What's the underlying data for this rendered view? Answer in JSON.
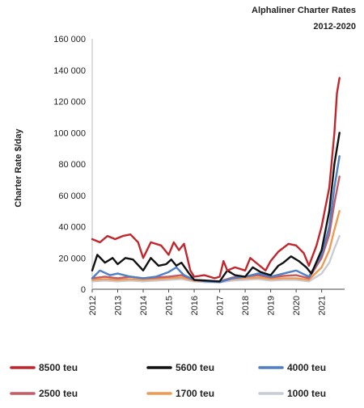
{
  "chart_data": {
    "type": "line",
    "title": "Alphaliner Charter Rates",
    "subtitle": "2012-2020",
    "ylabel": "Charter Rate $/day",
    "xlabel": "",
    "ylim": [
      0,
      160000
    ],
    "xlim": [
      2012,
      2021.9
    ],
    "y_ticks": [
      "0",
      "20 000",
      "40 000",
      "60 000",
      "80 000",
      "100 000",
      "120 000",
      "140 000",
      "160 000"
    ],
    "y_tick_values": [
      0,
      20000,
      40000,
      60000,
      80000,
      100000,
      120000,
      140000,
      160000
    ],
    "x_ticks": [
      "2012",
      "2013",
      "2014",
      "2015",
      "2016",
      "2017",
      "2018",
      "2019",
      "2020",
      "2021"
    ],
    "x_tick_values": [
      2012,
      2013,
      2014,
      2015,
      2016,
      2017,
      2018,
      2019,
      2020,
      2021
    ],
    "grid": false,
    "legend_position": "bottom",
    "series": [
      {
        "name": "8500 teu",
        "color": "#c0262c",
        "x": [
          2012,
          2012.3,
          2012.6,
          2012.9,
          2013.2,
          2013.5,
          2013.8,
          2014,
          2014.3,
          2014.7,
          2015,
          2015.2,
          2015.4,
          2015.6,
          2015.85,
          2016,
          2016.4,
          2016.8,
          2017,
          2017.15,
          2017.3,
          2017.6,
          2018,
          2018.2,
          2018.5,
          2018.8,
          2019,
          2019.3,
          2019.7,
          2020,
          2020.3,
          2020.5,
          2020.8,
          2021,
          2021.3,
          2021.5,
          2021.6,
          2021.7
        ],
        "y": [
          32000,
          30000,
          34000,
          32000,
          34000,
          35000,
          30000,
          20000,
          30000,
          28000,
          22000,
          30000,
          25000,
          29000,
          12000,
          8000,
          9000,
          7000,
          8000,
          18000,
          12000,
          14000,
          12000,
          20000,
          16000,
          12000,
          18000,
          24000,
          29000,
          28000,
          23000,
          15000,
          28000,
          40000,
          65000,
          100000,
          125000,
          135000
        ]
      },
      {
        "name": "5600 teu",
        "color": "#111111",
        "x": [
          2012,
          2012.2,
          2012.5,
          2012.8,
          2013,
          2013.3,
          2013.6,
          2014,
          2014.3,
          2014.6,
          2014.9,
          2015.1,
          2015.3,
          2015.5,
          2015.8,
          2016,
          2016.5,
          2017,
          2017.3,
          2017.6,
          2018,
          2018.3,
          2018.6,
          2019,
          2019.3,
          2019.5,
          2019.8,
          2020.1,
          2020.4,
          2020.6,
          2021,
          2021.3,
          2021.5,
          2021.7
        ],
        "y": [
          12000,
          22000,
          17000,
          20000,
          16000,
          20000,
          19000,
          12000,
          20000,
          15000,
          16000,
          19000,
          15000,
          17000,
          10000,
          6000,
          5500,
          5000,
          12000,
          9000,
          8000,
          14000,
          11000,
          9000,
          15000,
          17000,
          21000,
          18000,
          14000,
          10000,
          25000,
          50000,
          80000,
          100000
        ]
      },
      {
        "name": "4000 teu",
        "color": "#4f7fc4",
        "x": [
          2012,
          2012.3,
          2012.7,
          2013,
          2013.5,
          2014,
          2014.5,
          2015,
          2015.3,
          2015.6,
          2016,
          2016.5,
          2017,
          2017.5,
          2018,
          2018.5,
          2019,
          2019.5,
          2020,
          2020.5,
          2021,
          2021.3,
          2021.5,
          2021.7
        ],
        "y": [
          7000,
          12000,
          9000,
          10000,
          8000,
          7000,
          8000,
          11000,
          14000,
          9000,
          6000,
          5000,
          4500,
          7000,
          8000,
          10000,
          8000,
          10000,
          12000,
          8000,
          22000,
          40000,
          65000,
          85000
        ]
      },
      {
        "name": "2500 teu",
        "color": "#c45c64",
        "x": [
          2012,
          2012.5,
          2013,
          2013.5,
          2014,
          2014.5,
          2015,
          2015.5,
          2016,
          2016.5,
          2017,
          2017.5,
          2018,
          2018.5,
          2019,
          2019.5,
          2020,
          2020.5,
          2021,
          2021.3,
          2021.5,
          2021.7
        ],
        "y": [
          7000,
          8000,
          7000,
          8000,
          7000,
          7500,
          8000,
          9000,
          6000,
          5000,
          5000,
          7500,
          8000,
          9000,
          7500,
          8500,
          9000,
          7000,
          20000,
          35000,
          55000,
          72000
        ]
      },
      {
        "name": "1700 teu",
        "color": "#ed9a52",
        "x": [
          2012,
          2012.5,
          2013,
          2013.5,
          2014,
          2014.5,
          2015,
          2015.5,
          2016,
          2016.5,
          2017,
          2017.5,
          2018,
          2018.5,
          2019,
          2019.5,
          2020,
          2020.5,
          2021,
          2021.3,
          2021.5,
          2021.7
        ],
        "y": [
          6000,
          6500,
          6000,
          6500,
          6000,
          6500,
          7000,
          7500,
          5500,
          5000,
          5000,
          6500,
          7000,
          7500,
          6500,
          7000,
          7000,
          6000,
          14000,
          25000,
          38000,
          50000
        ]
      },
      {
        "name": "1000 teu",
        "color": "#c9cbd6",
        "x": [
          2012,
          2012.5,
          2013,
          2013.5,
          2014,
          2014.5,
          2015,
          2015.5,
          2016,
          2016.5,
          2017,
          2017.5,
          2018,
          2018.5,
          2019,
          2019.5,
          2020,
          2020.5,
          2021,
          2021.3,
          2021.5,
          2021.7
        ],
        "y": [
          5000,
          5500,
          5000,
          5500,
          5000,
          5500,
          6000,
          6500,
          5000,
          4500,
          4500,
          5500,
          6000,
          6500,
          5500,
          6000,
          6000,
          5000,
          10000,
          17000,
          26000,
          34000
        ]
      }
    ]
  }
}
